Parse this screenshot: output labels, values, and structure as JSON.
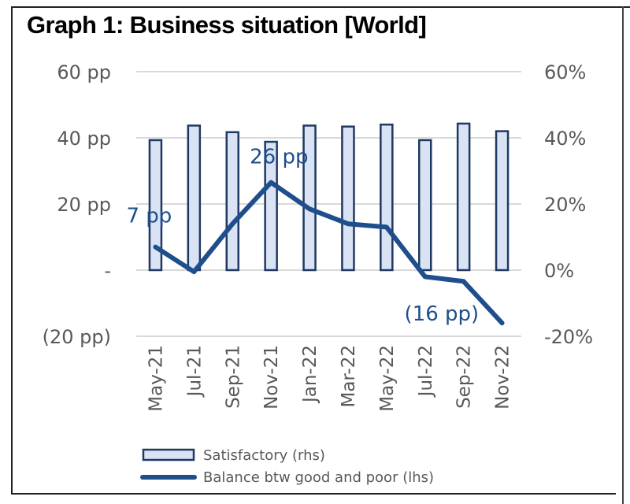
{
  "chart_data": {
    "type": "bar+line",
    "title": "Graph 1: Business situation [World]",
    "categories": [
      "May-21",
      "Jul-21",
      "Sep-21",
      "Nov-21",
      "Jan-22",
      "Mar-22",
      "May-22",
      "Jul-22",
      "Sep-22",
      "Nov-22"
    ],
    "series": [
      {
        "name": "Satisfactory (rhs)",
        "type": "bar",
        "axis": "right",
        "values": [
          39.3,
          43.7,
          41.7,
          38.8,
          43.7,
          43.4,
          44.0,
          39.3,
          44.3,
          42.0
        ]
      },
      {
        "name": "Balance btw good and poor (lhs)",
        "type": "line",
        "axis": "left",
        "values": [
          7,
          -0.5,
          14,
          26.5,
          18.5,
          14,
          13,
          -2,
          -3.4,
          -16
        ]
      }
    ],
    "data_labels": [
      {
        "series": 1,
        "index": 0,
        "text": "7 pp"
      },
      {
        "series": 1,
        "index": 3,
        "text": "26 pp"
      },
      {
        "series": 1,
        "index": 9,
        "text": "(16 pp)"
      }
    ],
    "left_axis": {
      "ylim": [
        -20,
        60
      ],
      "ticks": [
        60,
        40,
        20,
        0,
        -20
      ],
      "tick_labels": [
        "60 pp",
        "40 pp",
        "20 pp",
        "-",
        "(20 pp)"
      ]
    },
    "right_axis": {
      "ylim": [
        -20,
        60
      ],
      "ticks": [
        60,
        40,
        20,
        0,
        -20
      ],
      "tick_labels": [
        "60%",
        "40%",
        "20%",
        "0%",
        "-20%"
      ]
    },
    "xlabel": "",
    "ylabel": "",
    "grid": true,
    "legend": {
      "placement": "bottom-left",
      "entries": [
        "Satisfactory (rhs)",
        "Balance btw good and poor (lhs)"
      ]
    },
    "colors": {
      "bar_fill": "#dae3f3",
      "bar_border": "#1f3864",
      "line": "#1f4e8c",
      "grid": "#d9d9d9",
      "axis_text": "#595959"
    }
  }
}
